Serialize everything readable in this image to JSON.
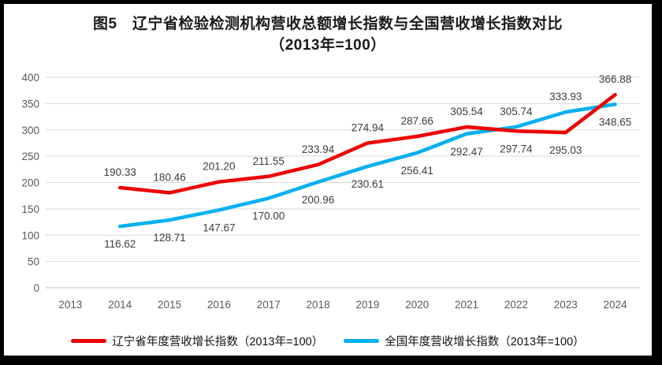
{
  "title": {
    "line1": "图5　辽宁省检验检测机构营收总额增长指数与全国营收增长指数对比",
    "line2": "（2013年=100）"
  },
  "colors": {
    "liaoning_line": "#ee0000",
    "national_line": "#00b0f0",
    "gridline": "#d9d9d9",
    "axis_line": "#bfbfbf",
    "tick_label": "#595959",
    "data_label": "#3d3d3d",
    "frame_border": "#000000"
  },
  "chart_data": {
    "type": "line",
    "title": "图5 辽宁省检验检测机构营收总额增长指数与全国营收增长指数对比（2013年=100）",
    "categories": [
      "2013",
      "2014",
      "2015",
      "2016",
      "2017",
      "2018",
      "2019",
      "2020",
      "2021",
      "2022",
      "2023",
      "2024"
    ],
    "start_category_index": 1,
    "ylim": [
      0,
      400
    ],
    "yticks": [
      0,
      50,
      100,
      150,
      200,
      250,
      300,
      350,
      400
    ],
    "grid": true,
    "legend_position": "bottom",
    "series": [
      {
        "key": "liaoning",
        "name": "辽宁省年度营收增长指数（2013年=100）",
        "color": "#ee0000",
        "values": [
          190.33,
          180.46,
          201.2,
          211.55,
          233.94,
          274.94,
          287.66,
          305.54,
          297.74,
          295.03,
          366.88
        ],
        "labels": [
          "190.33",
          "180.46",
          "201.20",
          "211.55",
          "233.94",
          "274.94",
          "287.66",
          "305.54",
          "297.74",
          "295.03",
          "366.88"
        ],
        "label_positions": [
          "above",
          "above",
          "above",
          "above",
          "above",
          "above",
          "above",
          "above",
          "below",
          "below",
          "above"
        ]
      },
      {
        "key": "national",
        "name": "全国年度营收增长指数（2013年=100）",
        "color": "#00b0f0",
        "values": [
          116.62,
          128.71,
          147.67,
          170.0,
          200.96,
          230.61,
          256.41,
          292.47,
          305.74,
          333.93,
          348.65
        ],
        "labels": [
          "116.62",
          "128.71",
          "147.67",
          "170.00",
          "200.96",
          "230.61",
          "256.41",
          "292.47",
          "305.74",
          "333.93",
          "348.65"
        ],
        "label_positions": [
          "below",
          "below",
          "below",
          "below",
          "below",
          "below",
          "below",
          "below",
          "above",
          "above",
          "below"
        ]
      }
    ]
  }
}
